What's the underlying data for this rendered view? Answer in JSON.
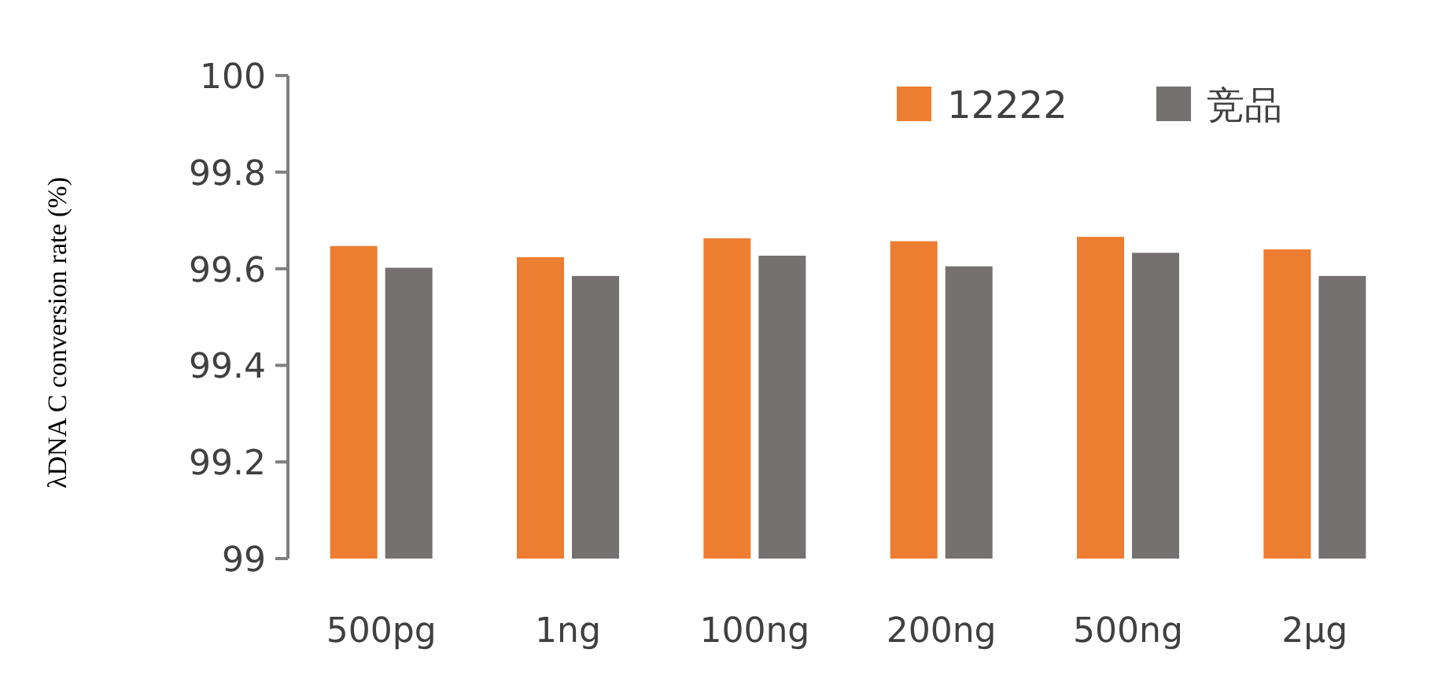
{
  "chart_data": {
    "type": "bar",
    "ylabel": "λDNA C conversion rate (%)",
    "categories": [
      "500pg",
      "1ng",
      "100ng",
      "200ng",
      "500ng",
      "2μg"
    ],
    "series": [
      {
        "name": "12222",
        "color": "#ed7d31",
        "values": [
          99.647,
          99.624,
          99.663,
          99.657,
          99.666,
          99.64
        ]
      },
      {
        "name": "竞品",
        "color": "#767171",
        "values": [
          99.602,
          99.585,
          99.627,
          99.605,
          99.633,
          99.585
        ]
      }
    ],
    "ylim": [
      99,
      100
    ],
    "yticks": [
      99,
      99.2,
      99.4,
      99.6,
      99.8,
      100
    ],
    "grid": false,
    "legend": "top right"
  }
}
